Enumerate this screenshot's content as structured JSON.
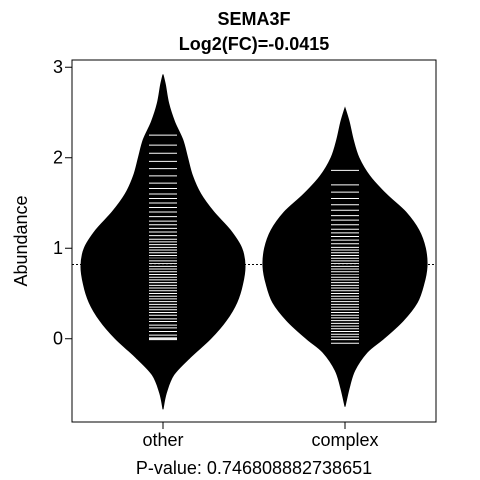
{
  "chart_data": {
    "type": "beanplot",
    "title": "SEMA3F",
    "subtitle": "Log2(FC)=-0.0415",
    "xlabel": "P-value: 0.746808882738651",
    "ylabel": "Abundance",
    "categories": [
      "other",
      "complex"
    ],
    "ylim": [
      -0.92,
      3.08
    ],
    "yticks": [
      0,
      1,
      2,
      3
    ],
    "grid": false,
    "overall_mean": 0.82,
    "groups": [
      {
        "name": "other",
        "mean": 0.88,
        "min": -0.78,
        "max": 2.92,
        "density": [
          [
            -0.78,
            0.0
          ],
          [
            -0.6,
            0.04
          ],
          [
            -0.4,
            0.13
          ],
          [
            -0.2,
            0.34
          ],
          [
            0.0,
            0.58
          ],
          [
            0.2,
            0.77
          ],
          [
            0.4,
            0.9
          ],
          [
            0.6,
            0.97
          ],
          [
            0.8,
            1.0
          ],
          [
            1.0,
            0.96
          ],
          [
            1.2,
            0.82
          ],
          [
            1.4,
            0.62
          ],
          [
            1.6,
            0.46
          ],
          [
            1.8,
            0.36
          ],
          [
            2.0,
            0.3
          ],
          [
            2.2,
            0.24
          ],
          [
            2.4,
            0.14
          ],
          [
            2.6,
            0.07
          ],
          [
            2.8,
            0.03
          ],
          [
            2.92,
            0.0
          ]
        ],
        "observations": [
          -0.01,
          0.0,
          0.01,
          0.04,
          0.08,
          0.12,
          0.15,
          0.19,
          0.22,
          0.26,
          0.29,
          0.32,
          0.35,
          0.38,
          0.41,
          0.44,
          0.47,
          0.5,
          0.53,
          0.56,
          0.59,
          0.62,
          0.65,
          0.68,
          0.71,
          0.74,
          0.77,
          0.8,
          0.83,
          0.86,
          0.89,
          0.92,
          0.95,
          0.98,
          1.01,
          1.04,
          1.07,
          1.1,
          1.14,
          1.18,
          1.22,
          1.26,
          1.3,
          1.35,
          1.4,
          1.45,
          1.5,
          1.55,
          1.6,
          1.66,
          1.72,
          1.8,
          1.88,
          1.96,
          2.05,
          2.14,
          2.25
        ]
      },
      {
        "name": "complex",
        "mean": 0.72,
        "min": -0.75,
        "max": 2.55,
        "density": [
          [
            -0.75,
            0.0
          ],
          [
            -0.55,
            0.05
          ],
          [
            -0.35,
            0.12
          ],
          [
            -0.15,
            0.27
          ],
          [
            0.0,
            0.47
          ],
          [
            0.2,
            0.71
          ],
          [
            0.4,
            0.88
          ],
          [
            0.6,
            0.96
          ],
          [
            0.8,
            1.0
          ],
          [
            1.0,
            0.98
          ],
          [
            1.2,
            0.9
          ],
          [
            1.4,
            0.74
          ],
          [
            1.6,
            0.5
          ],
          [
            1.8,
            0.3
          ],
          [
            2.0,
            0.17
          ],
          [
            2.2,
            0.1
          ],
          [
            2.4,
            0.05
          ],
          [
            2.55,
            0.0
          ]
        ],
        "observations": [
          -0.05,
          -0.01,
          0.02,
          0.05,
          0.08,
          0.11,
          0.14,
          0.17,
          0.2,
          0.23,
          0.26,
          0.29,
          0.32,
          0.35,
          0.38,
          0.41,
          0.44,
          0.47,
          0.5,
          0.53,
          0.56,
          0.59,
          0.62,
          0.65,
          0.68,
          0.71,
          0.74,
          0.77,
          0.8,
          0.83,
          0.86,
          0.89,
          0.92,
          0.95,
          0.98,
          1.01,
          1.05,
          1.09,
          1.13,
          1.17,
          1.21,
          1.26,
          1.31,
          1.36,
          1.42,
          1.48,
          1.55,
          1.62,
          1.7,
          1.86
        ]
      }
    ]
  }
}
